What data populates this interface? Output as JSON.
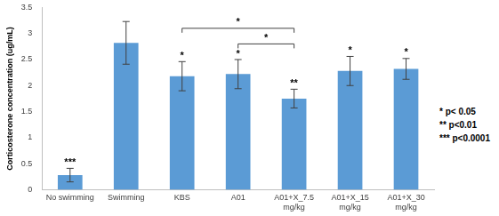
{
  "chart_data": {
    "type": "bar",
    "y_label": "Corticosterone concentration (ug/mL)",
    "categories": [
      "No swimming",
      "Swimming",
      "KBS",
      "A01",
      "A01+X_7.5\nmg/kg",
      "A01+X_15\nmg/kg",
      "A01+X_30\nmg/kg"
    ],
    "values": [
      0.28,
      2.82,
      2.18,
      2.22,
      1.75,
      2.28,
      2.32
    ],
    "errors": [
      0.13,
      0.41,
      0.28,
      0.28,
      0.18,
      0.28,
      0.2
    ],
    "significance": [
      "***",
      null,
      "*",
      "*",
      "**",
      "*",
      "*"
    ],
    "comparisons": [
      {
        "from": 2,
        "to": 4,
        "label": "*"
      },
      {
        "from": 3,
        "to": 4,
        "label": "*"
      }
    ],
    "significance_key": [
      "* p< 0.05",
      "** p<0.01",
      "*** p<0.0001"
    ],
    "color": "#5b9bd5",
    "ylim": [
      0,
      3.5
    ],
    "yticks": [
      0,
      0.5,
      1,
      1.5,
      2,
      2.5,
      3,
      3.5
    ],
    "grid": false
  }
}
